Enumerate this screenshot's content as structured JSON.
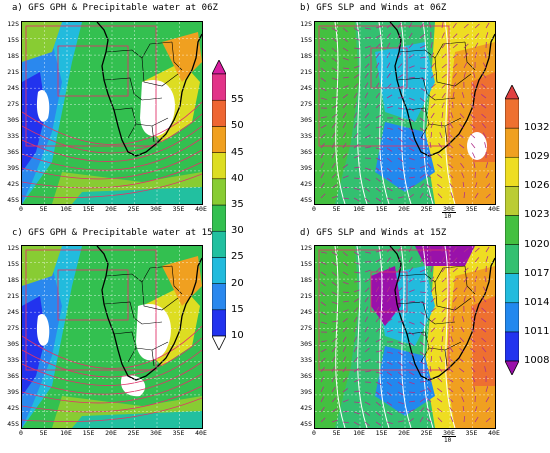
{
  "panels": [
    {
      "id": "a",
      "title": "a) GFS GPH & Precipitable water at 06Z",
      "kind": "pw"
    },
    {
      "id": "b",
      "title": "b) GFS SLP and Winds at 06Z",
      "kind": "slp"
    },
    {
      "id": "c",
      "title": "c) GFS GPH & Precipitable water at 15Z",
      "kind": "pw"
    },
    {
      "id": "d",
      "title": "d) GFS SLP and Winds at 15Z",
      "kind": "slp"
    }
  ],
  "lat_labels": [
    "12S",
    "15S",
    "18S",
    "21S",
    "24S",
    "27S",
    "30S",
    "33S",
    "36S",
    "39S",
    "42S",
    "45S"
  ],
  "lon_labels": [
    "0",
    "5E",
    "10E",
    "15E",
    "20E",
    "25E",
    "30E",
    "35E",
    "40E"
  ],
  "wind_reference": "10",
  "colorbars": {
    "pw": {
      "labels": [
        "10",
        "15",
        "20",
        "25",
        "30",
        "35",
        "40",
        "45",
        "50",
        "55"
      ],
      "colors": [
        "#ffffff",
        "#2233ee",
        "#2a88ee",
        "#22bbdd",
        "#22c0a0",
        "#33c050",
        "#88cc33",
        "#dddd22",
        "#f0a020",
        "#ee6633",
        "#e23388",
        "#d81ea0"
      ]
    },
    "slp": {
      "labels": [
        "1008",
        "1011",
        "1014",
        "1017",
        "1020",
        "1023",
        "1026",
        "1029",
        "1032"
      ],
      "colors": [
        "#9911aa",
        "#2233ee",
        "#2288ee",
        "#22bbdd",
        "#33c070",
        "#44c040",
        "#bbcc33",
        "#eedd22",
        "#f0a020",
        "#ee7030",
        "#e04040"
      ]
    }
  }
}
